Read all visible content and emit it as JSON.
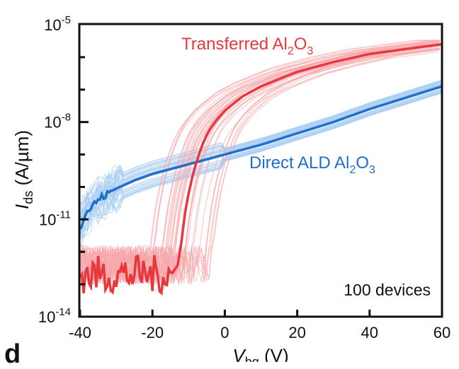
{
  "chart_data": {
    "type": "line",
    "title": "",
    "annotation": "100 devices",
    "xlabel": {
      "base": "V",
      "sub": "bg",
      "unit": " (V)"
    },
    "ylabel": {
      "base": "I",
      "sub": "ds",
      "unit": " (A/µm)"
    },
    "xlim": [
      -40,
      60
    ],
    "ylim_log10": [
      -14,
      -5
    ],
    "y_scale": "log",
    "x_ticks": [
      -40,
      -20,
      0,
      20,
      40,
      60
    ],
    "y_ticks": [
      {
        "base": "10",
        "exp": "-14"
      },
      {
        "base": "10",
        "exp": "-11"
      },
      {
        "base": "10",
        "exp": "-8"
      },
      {
        "base": "10",
        "exp": "-5"
      }
    ],
    "y_tick_values": [
      -14,
      -11,
      -8,
      -5
    ],
    "device_count": 100,
    "series": [
      {
        "name": "Transferred Al2O3",
        "label_parts": [
          "Transferred Al",
          "2",
          "O",
          "3"
        ],
        "color": "#e8383d",
        "faint_color": "#f6a8ab",
        "x": [
          -40,
          -30,
          -20,
          -14,
          -13,
          -12,
          -11,
          -10,
          -9,
          -8,
          -7,
          -6,
          -5,
          -4,
          -2,
          0,
          5,
          10,
          20,
          30,
          40,
          50,
          60
        ],
        "log10_I": [
          -12.6,
          -12.6,
          -12.6,
          -12.6,
          -12.4,
          -11.7,
          -10.8,
          -10.2,
          -9.7,
          -9.3,
          -8.95,
          -8.65,
          -8.4,
          -8.2,
          -7.9,
          -7.65,
          -7.2,
          -6.9,
          -6.45,
          -6.15,
          -5.9,
          -5.75,
          -5.6
        ],
        "noise_floor": [
          -12.1,
          -13.3
        ]
      },
      {
        "name": "Direct ALD Al2O3",
        "label_parts": [
          "Direct ALD Al",
          "2",
          "O",
          "3"
        ],
        "color": "#1f6fcc",
        "faint_color": "#a6cdf2",
        "x": [
          -40,
          -38,
          -35,
          -30,
          -25,
          -20,
          -15,
          -10,
          -5,
          0,
          10,
          20,
          30,
          40,
          50,
          60
        ],
        "log10_I": [
          -11.2,
          -10.75,
          -10.4,
          -10.05,
          -9.8,
          -9.6,
          -9.45,
          -9.3,
          -9.15,
          -9.0,
          -8.7,
          -8.35,
          -8.0,
          -7.6,
          -7.25,
          -6.9
        ]
      }
    ]
  }
}
